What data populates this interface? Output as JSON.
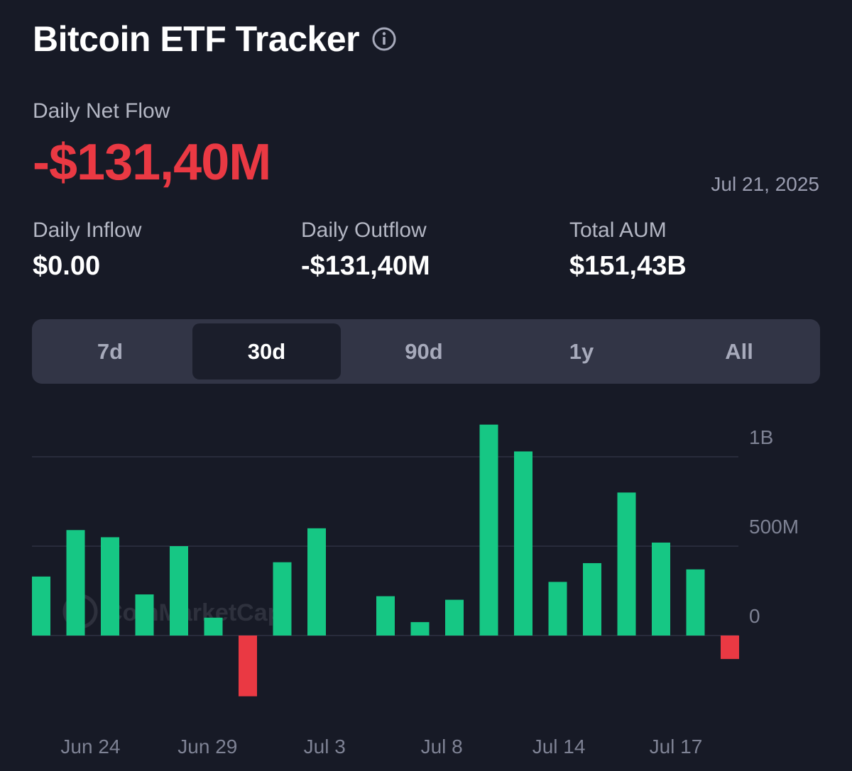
{
  "header": {
    "title": "Bitcoin ETF Tracker",
    "info_icon": "info-circle-icon"
  },
  "summary": {
    "net_flow_label": "Daily Net Flow",
    "net_flow_value": "-$131,40M",
    "date": "Jul 21, 2025",
    "inflow_label": "Daily Inflow",
    "inflow_value": "$0.00",
    "outflow_label": "Daily Outflow",
    "outflow_value": "-$131,40M",
    "aum_label": "Total AUM",
    "aum_value": "$151,43B"
  },
  "tabs": [
    {
      "label": "7d",
      "active": false
    },
    {
      "label": "30d",
      "active": true
    },
    {
      "label": "90d",
      "active": false
    },
    {
      "label": "1y",
      "active": false
    },
    {
      "label": "All",
      "active": false
    }
  ],
  "colors": {
    "positive": "#16c784",
    "negative": "#ea3943",
    "background": "#171a26",
    "grid": "#2e3142",
    "axis_text": "#7e8294"
  },
  "chart_data": {
    "type": "bar",
    "watermark": "CoinMarketCap",
    "x_tick_labels": [
      "Jun 24",
      "Jun 29",
      "Jul 3",
      "Jul 8",
      "Jul 14",
      "Jul 17"
    ],
    "x_tick_bar_index": [
      1.7,
      5.1,
      8.5,
      11.9,
      15.3,
      18.7
    ],
    "y_ticks": [
      {
        "value": 1000000000,
        "label": "1B"
      },
      {
        "value": 500000000,
        "label": "500M"
      },
      {
        "value": 0,
        "label": "0"
      }
    ],
    "ylim": [
      -450000000,
      1200000000
    ],
    "grid": true,
    "values": [
      330000000,
      590000000,
      550000000,
      230000000,
      500000000,
      100000000,
      -340000000,
      410000000,
      600000000,
      0,
      220000000,
      75000000,
      200000000,
      1180000000,
      1030000000,
      300000000,
      405000000,
      800000000,
      520000000,
      370000000,
      -131400000
    ]
  }
}
